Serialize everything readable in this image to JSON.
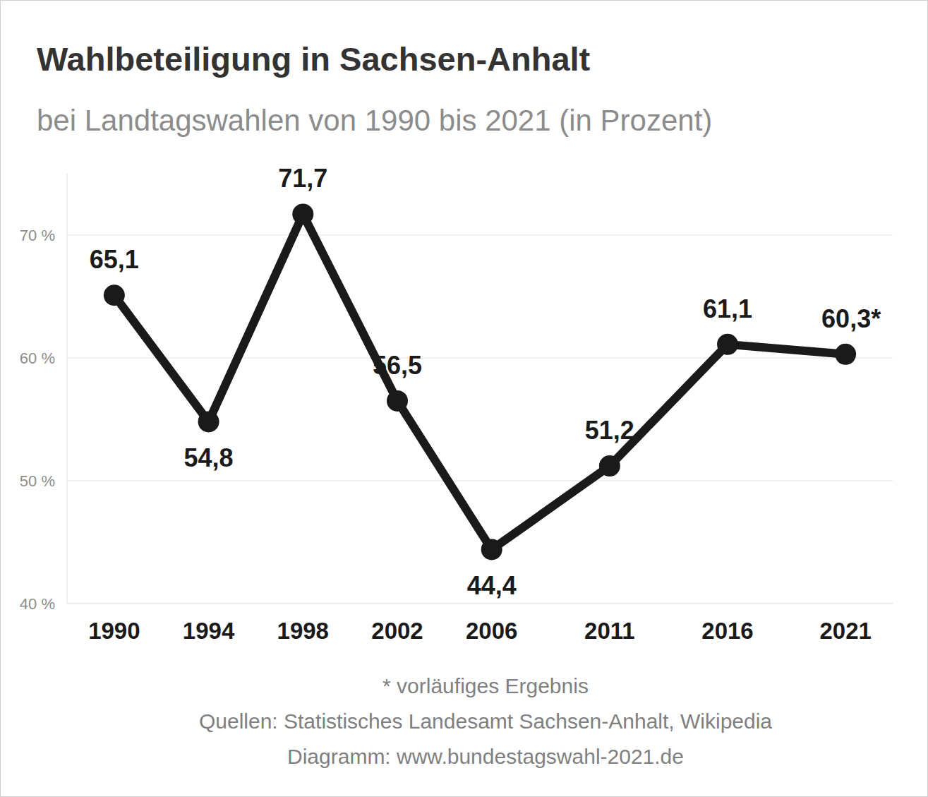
{
  "chart_data": {
    "type": "line",
    "title": "Wahlbeteiligung in Sachsen-Anhalt",
    "subtitle": "bei Landtagswahlen von 1990 bis 2021 (in Prozent)",
    "x": [
      1990,
      1994,
      1998,
      2002,
      2006,
      2011,
      2016,
      2021
    ],
    "values": [
      65.1,
      54.8,
      71.7,
      56.5,
      44.4,
      51.2,
      61.1,
      60.3
    ],
    "value_labels": [
      "65,1",
      "54,8",
      "71,7",
      "56,5",
      "44,4",
      "51,2",
      "61,1",
      "60,3*"
    ],
    "color": "#1a1a1a",
    "marker": "circle",
    "xlim": [
      1988,
      2023
    ],
    "xticks": [
      1990,
      1994,
      1998,
      2002,
      2006,
      2011,
      2016,
      2021
    ],
    "ylim": [
      40,
      75
    ],
    "yticks": [
      {
        "value": 40,
        "label": "40 %"
      },
      {
        "value": 50,
        "label": "50 %"
      },
      {
        "value": 60,
        "label": "60 %"
      },
      {
        "value": 70,
        "label": "70 %"
      }
    ],
    "grid": true,
    "data_labels": true,
    "annotations": [
      "* vorläufiges Ergebnis",
      "Quellen: Statistisches Landesamt Sachsen-Anhalt, Wikipedia",
      "Diagramm: www.bundestagswahl-2021.de"
    ]
  }
}
